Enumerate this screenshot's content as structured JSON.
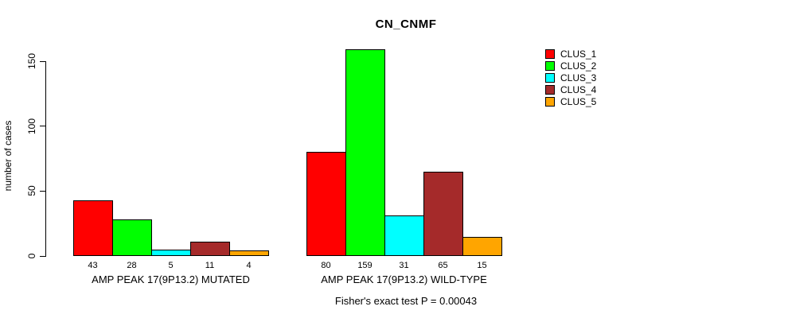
{
  "chart_data": {
    "type": "bar",
    "title": "CN_CNMF",
    "ylabel": "number of cases",
    "xlabel": "",
    "yticks": [
      0,
      50,
      100,
      150
    ],
    "ylim": [
      0,
      163
    ],
    "grid": false,
    "legend_position": "top-right",
    "bar_value_labels_shown": true,
    "categories": [
      "AMP PEAK 17(9P13.2) MUTATED",
      "AMP PEAK 17(9P13.2) WILD-TYPE"
    ],
    "series": [
      {
        "name": "CLUS_1",
        "color": "#FF0000",
        "values": [
          43,
          80
        ]
      },
      {
        "name": "CLUS_2",
        "color": "#00FF00",
        "values": [
          28,
          159
        ]
      },
      {
        "name": "CLUS_3",
        "color": "#00FFFF",
        "values": [
          5,
          31
        ]
      },
      {
        "name": "CLUS_4",
        "color": "#A52A2A",
        "values": [
          11,
          65
        ]
      },
      {
        "name": "CLUS_5",
        "color": "#FFA500",
        "values": [
          4,
          15
        ]
      }
    ],
    "footnote": "Fisher's exact test P = 0.00043"
  }
}
